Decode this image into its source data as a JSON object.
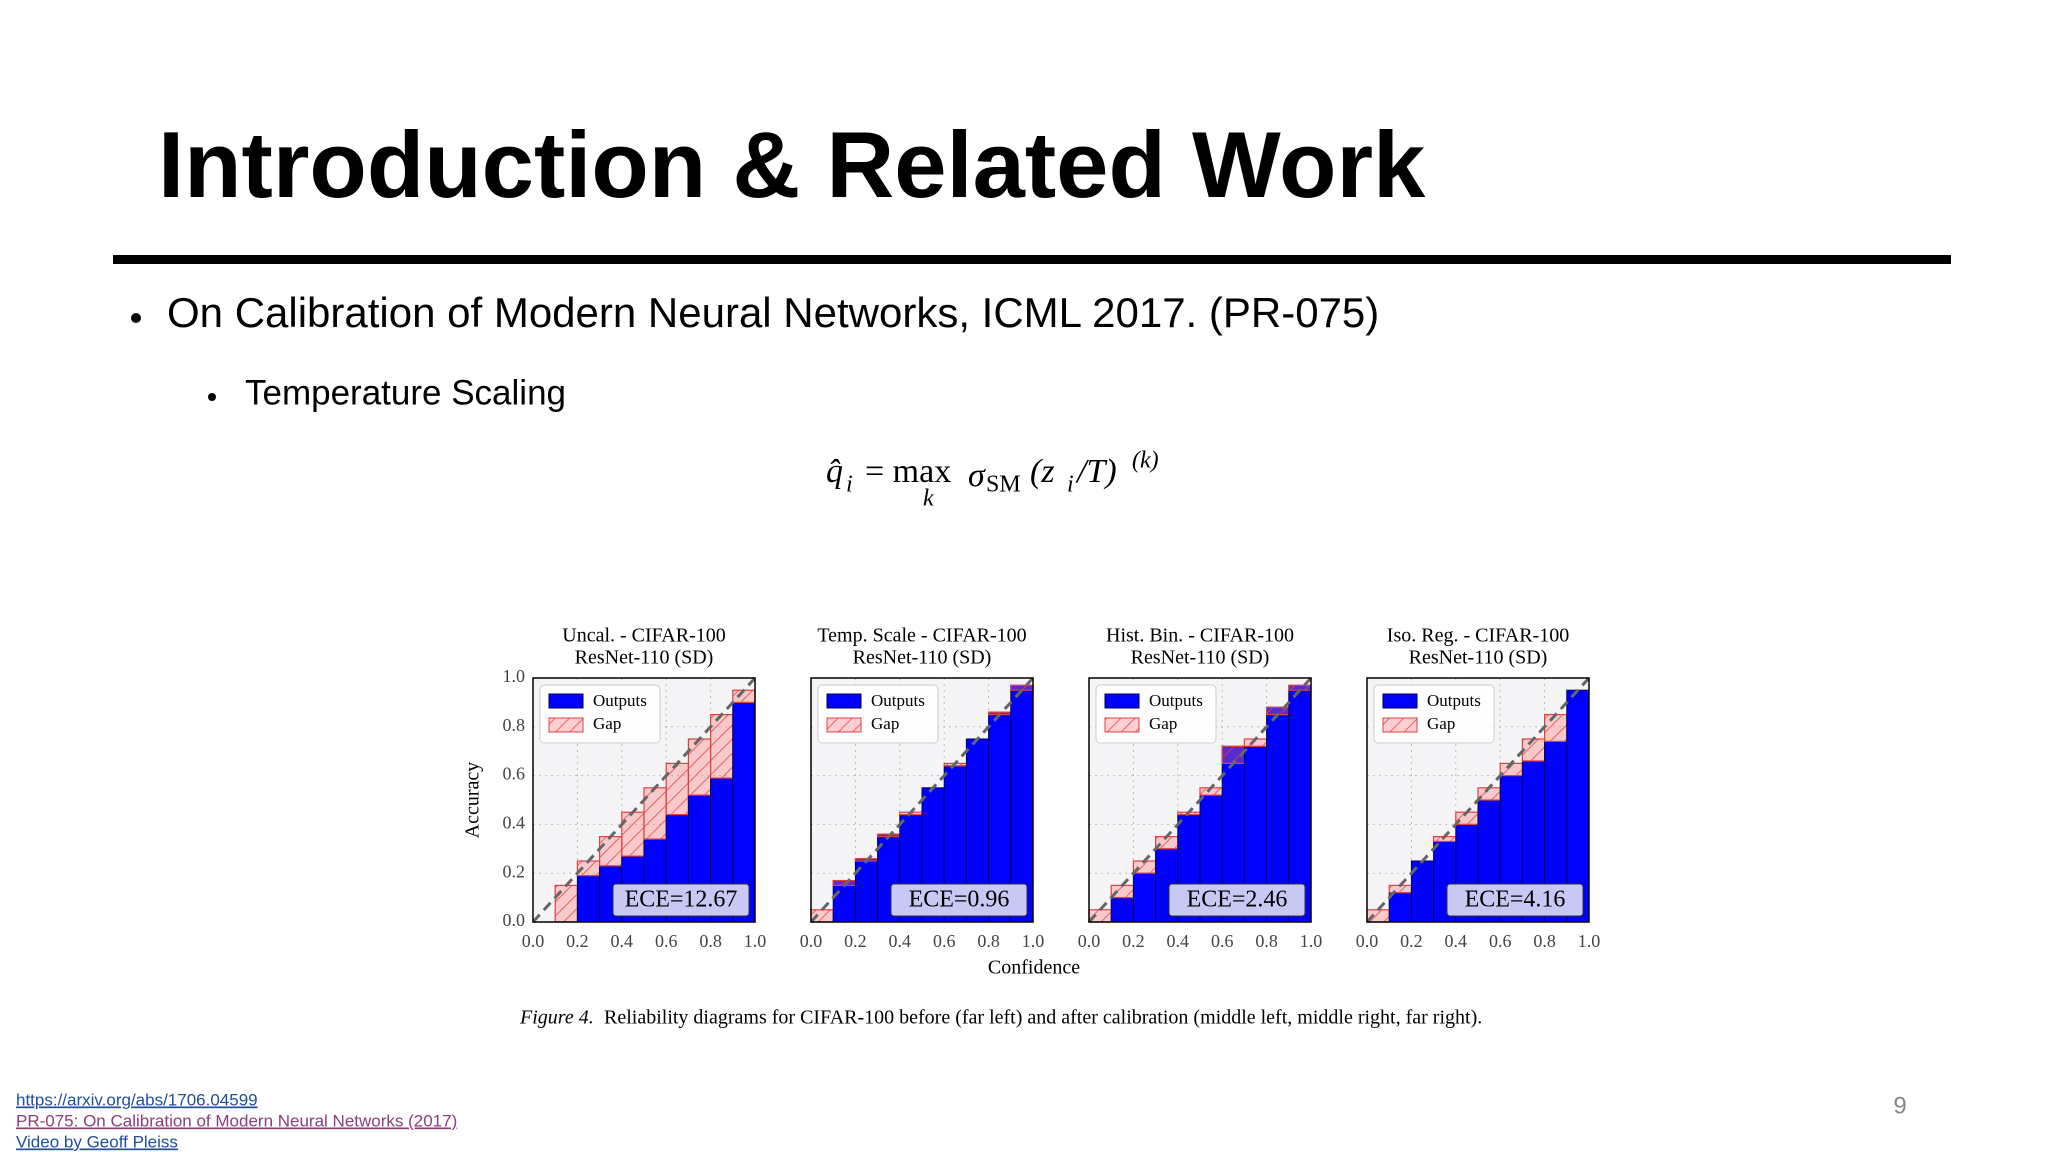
{
  "slide": {
    "title": "Introduction & Related Work",
    "bullet": "On Calibration of Modern Neural Networks, ICML 2017. (PR-075)",
    "sub_bullet": "Temperature Scaling",
    "formula": {
      "lhs": "q̂",
      "lhs_sub": "i",
      "eq": "= max",
      "max_sub": "k",
      "sigma": "σ",
      "sigma_sub": "SM",
      "arg": "(z",
      "arg_sub": "i",
      "arg_end": "/T)",
      "sup": "(k)"
    },
    "page_number": "9"
  },
  "figure": {
    "ylabel": "Accuracy",
    "xlabel": "Confidence",
    "legend": [
      "Outputs",
      "Gap"
    ],
    "xticks": [
      {
        "value": 0,
        "label": "0.0"
      },
      {
        "value": 0.2,
        "label": "0.2"
      },
      {
        "value": 0.4,
        "label": "0.4"
      },
      {
        "value": 0.6,
        "label": "0.6"
      },
      {
        "value": 0.8,
        "label": "0.8"
      },
      {
        "value": 1,
        "label": "1.0"
      }
    ],
    "yticks": [
      {
        "value": 0,
        "label": "0.0"
      },
      {
        "value": 0.2,
        "label": "0.2"
      },
      {
        "value": 0.4,
        "label": "0.4"
      },
      {
        "value": 0.6,
        "label": "0.6"
      },
      {
        "value": 0.8,
        "label": "0.8"
      },
      {
        "value": 1,
        "label": "1.0"
      }
    ],
    "charts": [
      {
        "title": [
          "Uncal. - CIFAR-100",
          "ResNet-110 (SD)"
        ],
        "ece": "ECE=12.67",
        "outputs": [
          null,
          0,
          0.19,
          0.23,
          0.27,
          0.34,
          0.44,
          0.52,
          0.59,
          0.9
        ]
      },
      {
        "title": [
          "Temp. Scale - CIFAR-100",
          "ResNet-110 (SD)"
        ],
        "ece": "ECE=0.96",
        "outputs": [
          0,
          0.17,
          0.26,
          0.36,
          0.44,
          0.55,
          0.64,
          0.75,
          0.86,
          0.97
        ]
      },
      {
        "title": [
          "Hist. Bin. - CIFAR-100",
          "ResNet-110 (SD)"
        ],
        "ece": "ECE=2.46",
        "outputs": [
          0,
          0.1,
          0.2,
          0.3,
          0.44,
          0.52,
          0.72,
          0.72,
          0.88,
          0.97
        ]
      },
      {
        "title": [
          "Iso. Reg. - CIFAR-100",
          "ResNet-110 (SD)"
        ],
        "ece": "ECE=4.16",
        "outputs": [
          0,
          0.12,
          0.25,
          0.33,
          0.4,
          0.5,
          0.6,
          0.66,
          0.74,
          0.95
        ]
      }
    ],
    "caption_label": "Figure 4.",
    "caption": "Reliability diagrams for CIFAR-100 before (far left) and after calibration (middle left, middle right, far right)."
  },
  "links": [
    "https://arxiv.org/abs/1706.04599",
    "PR-075: On Calibration of Modern Neural Networks (2017)",
    "Video by Geoff Pleiss"
  ]
}
